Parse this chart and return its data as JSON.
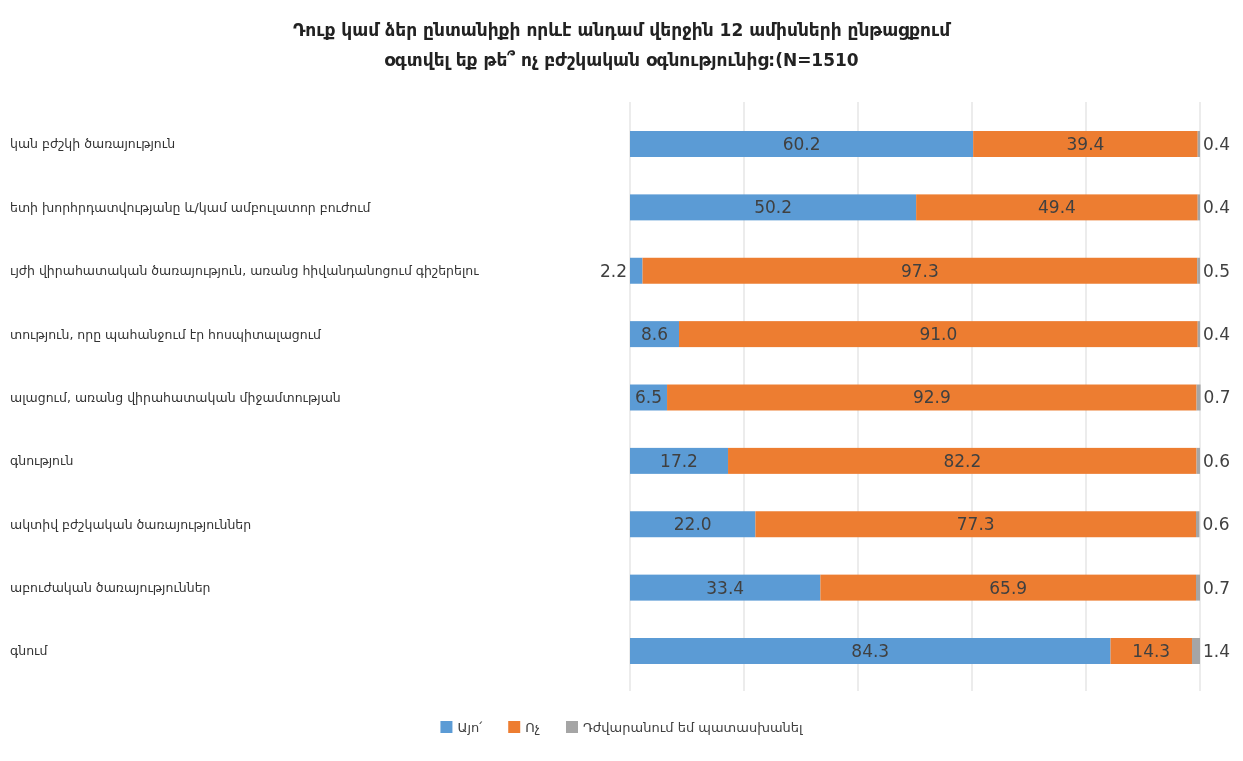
{
  "chart_data": {
    "type": "bar",
    "orientation": "horizontal",
    "stacked": true,
    "title": "Դուք կամ ձեր ընտանիքի որևէ անդամ վերջին 12 ամիսների ընթացքում օգտվել եք թե՞ ոչ բժշկական օգնությունից:(N=1510",
    "categories": [
      "կան  բժշկի ծառայություն",
      "ետի  խորհրդատվությանը և/կամ ամբուլատոր բուժում",
      "ւյժի վիրահատական ծառայություն, առանց հիվանդանոցում գիշերելու",
      "տություն, որը պահանջում էր հոսպիտալացում",
      "ալացում, առանց վիրահատական միջամտության",
      "գնություն",
      "ակտիվ  բժշկական ծառայություններ",
      "աբուժական ծառայություններ",
      "գնում"
    ],
    "series": [
      {
        "name": "Այո՛",
        "color": "#5b9bd5",
        "values": [
          60.2,
          50.2,
          2.2,
          8.6,
          6.5,
          17.2,
          22.0,
          33.4,
          84.3
        ],
        "value_labels": [
          "60.2",
          "50.2",
          "2.2",
          "8.6",
          "6.5",
          "17.2",
          "22.0",
          "33.4",
          "84.3"
        ]
      },
      {
        "name": "Ոչ",
        "color": "#ed7d31",
        "values": [
          39.4,
          49.4,
          97.3,
          91.0,
          92.9,
          82.2,
          77.3,
          65.9,
          14.3
        ],
        "value_labels": [
          "39.4",
          "49.4",
          "97.3",
          "91.0",
          "92.9",
          "82.2",
          "77.3",
          "65.9",
          "14.3"
        ]
      },
      {
        "name": "Դժվարանում եմ պատասխանել",
        "color": "#a5a5a5",
        "values": [
          0.4,
          0.4,
          0.5,
          0.4,
          0.7,
          0.6,
          0.6,
          0.7,
          1.4
        ],
        "value_labels": [
          "0.4",
          "0.4",
          "0.5",
          "0.4",
          "0.7",
          "0.6",
          "0.6",
          "0.7",
          "1.4"
        ]
      }
    ],
    "xlim": [
      0,
      100
    ],
    "xticks": [
      {
        "value": 0,
        "label": null
      },
      {
        "value": 20,
        "label": null
      },
      {
        "value": 40,
        "label": null
      },
      {
        "value": 60,
        "label": null
      },
      {
        "value": 80,
        "label": null
      },
      {
        "value": 100,
        "label": null
      }
    ],
    "tick_labels": "y",
    "grid": "x",
    "legend": "bottom"
  }
}
